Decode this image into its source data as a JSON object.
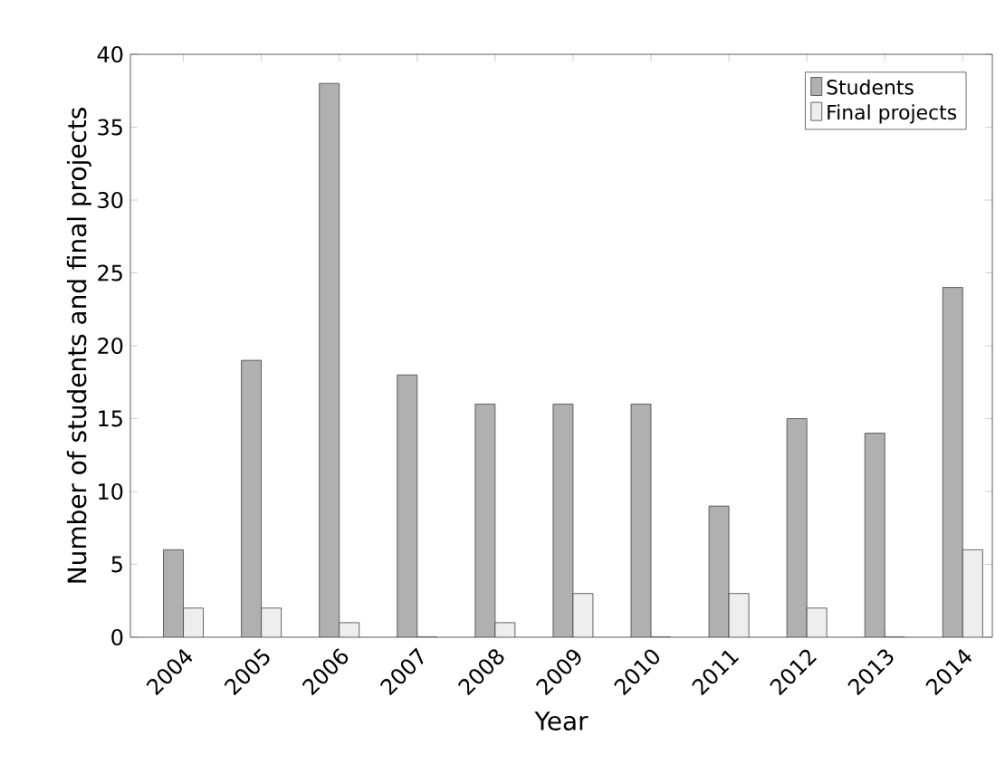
{
  "chart_data": {
    "type": "bar",
    "xlabel": "Year",
    "ylabel": "Number of students and final projects",
    "categories": [
      "2004",
      "2005",
      "2006",
      "2007",
      "2008",
      "2009",
      "2010",
      "2011",
      "2012",
      "2013",
      "2014"
    ],
    "series": [
      {
        "name": "Students",
        "color": "#b0b0b0",
        "values": [
          6,
          19,
          38,
          18,
          16,
          16,
          16,
          9,
          15,
          14,
          24
        ]
      },
      {
        "name": "Final projects",
        "color": "#eeeeee",
        "values": [
          2,
          2,
          1,
          0,
          1,
          3,
          0,
          3,
          2,
          0,
          6
        ]
      }
    ],
    "ylim": [
      0,
      40
    ],
    "yticks": [
      0,
      5,
      10,
      15,
      20,
      25,
      30,
      35,
      40
    ],
    "legend": "top right",
    "grid": false
  }
}
